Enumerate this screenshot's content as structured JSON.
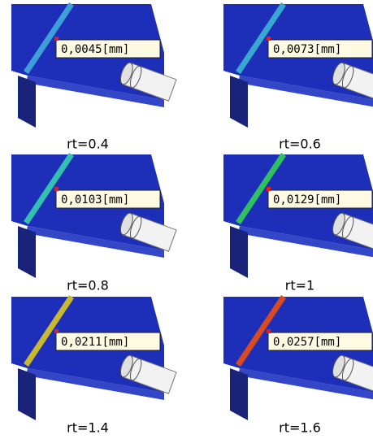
{
  "panels": [
    {
      "annotation": "0,0045[mm]",
      "caption": "rt=0.4",
      "strip_color": "#3f9fd8"
    },
    {
      "annotation": "0,0073[mm]",
      "caption": "rt=0.6",
      "strip_color": "#38a8d0"
    },
    {
      "annotation": "0,0103[mm]",
      "caption": "rt=0.8",
      "strip_color": "#34c0b0"
    },
    {
      "annotation": "0,0129[mm]",
      "caption": "rt=1",
      "strip_color": "#2fc060"
    },
    {
      "annotation": "0,0211[mm]",
      "caption": "rt=1.4",
      "strip_color": "#c8b830"
    },
    {
      "annotation": "0,0257[mm]",
      "caption": "rt=1.6",
      "strip_color": "#d84a20"
    }
  ]
}
